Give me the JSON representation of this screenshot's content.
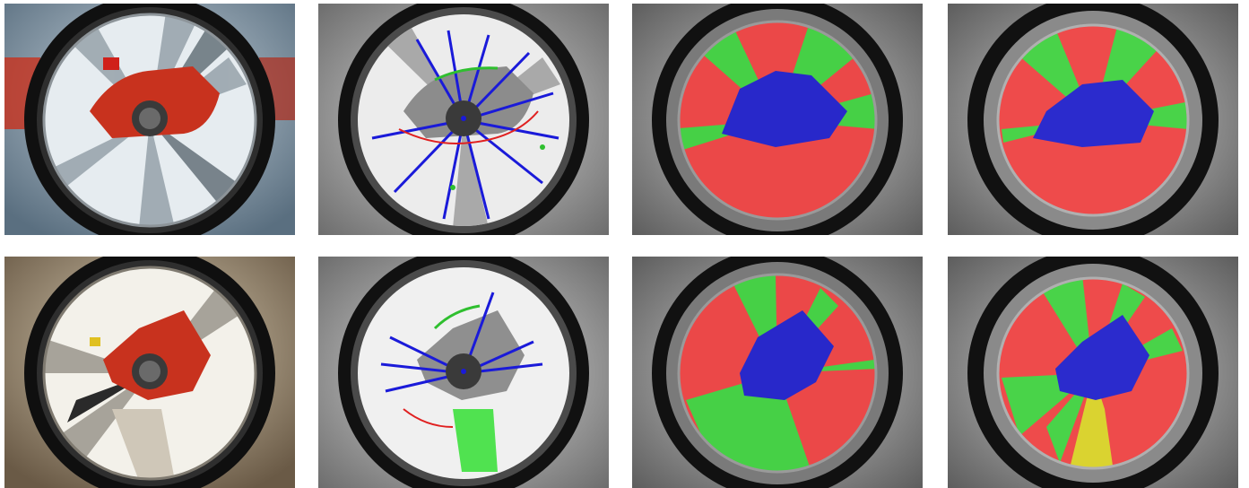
{
  "figure": {
    "rows": [
      {
        "panels": [
          {
            "kind": "color-fisheye",
            "ground": "red"
          },
          {
            "kind": "edge-overlay"
          },
          {
            "kind": "segmentation",
            "regions": [
              "red",
              "green",
              "blue"
            ]
          },
          {
            "kind": "segmentation",
            "regions": [
              "red",
              "green",
              "blue"
            ]
          }
        ]
      },
      {
        "panels": [
          {
            "kind": "color-fisheye",
            "ground": "red"
          },
          {
            "kind": "edge-overlay"
          },
          {
            "kind": "segmentation",
            "regions": [
              "red",
              "green",
              "blue"
            ]
          },
          {
            "kind": "segmentation",
            "regions": [
              "red",
              "green",
              "blue",
              "yellow"
            ]
          }
        ]
      }
    ],
    "colors": {
      "red": "#ff4040",
      "green": "#3ee03e",
      "blue": "#1a1ad9",
      "yellow": "#e8e020",
      "lens": "#141414"
    }
  }
}
